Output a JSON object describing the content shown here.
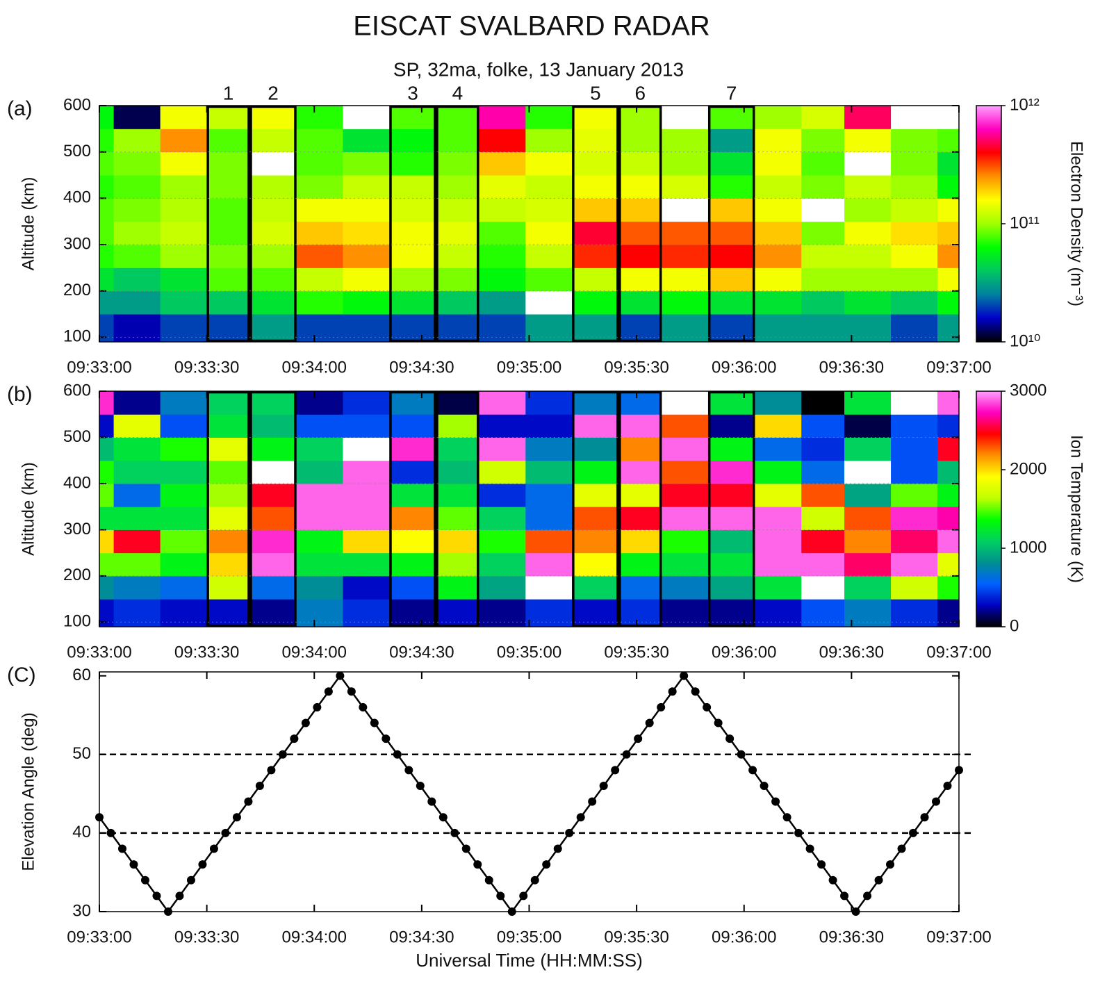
{
  "title": "EISCAT SVALBARD RADAR",
  "subtitle": "SP, 32ma, folke, 13 January 2013",
  "chart_data": [
    {
      "type": "heatmap",
      "panel_label": "(a)",
      "y_label": "Altitude (km)",
      "xlim": [
        0,
        240
      ],
      "xticks": [
        {
          "value": 0,
          "label": "09:33:00"
        },
        {
          "value": 30,
          "label": "09:33:30"
        },
        {
          "value": 60,
          "label": "09:34:00"
        },
        {
          "value": 90,
          "label": "09:34:30"
        },
        {
          "value": 120,
          "label": "09:35:00"
        },
        {
          "value": 150,
          "label": "09:35:30"
        },
        {
          "value": 180,
          "label": "09:36:00"
        },
        {
          "value": 210,
          "label": "09:36:30"
        },
        {
          "value": 240,
          "label": "09:37:00"
        }
      ],
      "ylim": [
        90,
        600
      ],
      "yticks": [
        100,
        200,
        300,
        400,
        500,
        600
      ],
      "grid": true,
      "x_edges": [
        0,
        4,
        17,
        30,
        42,
        55,
        68,
        81,
        94,
        106,
        119,
        132,
        145,
        157,
        170,
        183,
        196,
        208,
        221,
        234,
        240
      ],
      "y_edges": [
        90,
        150,
        200,
        250,
        300,
        350,
        400,
        450,
        500,
        550,
        600
      ],
      "column_labels": [
        null,
        null,
        null,
        "1",
        "2",
        null,
        null,
        "3",
        "4",
        null,
        null,
        "5",
        "6",
        null,
        "7",
        null,
        null,
        null,
        null,
        null
      ],
      "values": [
        [
          20000000000.0,
          30000000000.0,
          50000000000.0,
          70000000000.0,
          80000000000.0,
          80000000000.0,
          70000000000.0,
          80000000000.0,
          70000000000.0,
          60000000000.0
        ],
        [
          15000000000.0,
          30000000000.0,
          40000000000.0,
          80000000000.0,
          100000000000.0,
          90000000000.0,
          80000000000.0,
          90000000000.0,
          100000000000.0,
          12000000000.0
        ],
        [
          20000000000.0,
          40000000000.0,
          50000000000.0,
          100000000000.0,
          120000000000.0,
          110000000000.0,
          100000000000.0,
          150000000000.0,
          250000000000.0,
          150000000000.0
        ],
        [
          20000000000.0,
          40000000000.0,
          80000000000.0,
          90000000000.0,
          80000000000.0,
          80000000000.0,
          90000000000.0,
          90000000000.0,
          80000000000.0,
          120000000000.0
        ],
        [
          30000000000.0,
          50000000000.0,
          80000000000.0,
          100000000000.0,
          130000000000.0,
          120000000000.0,
          110000000000.0,
          null,
          120000000000.0,
          150000000000.0
        ],
        [
          20000000000.0,
          70000000000.0,
          120000000000.0,
          300000000000.0,
          200000000000.0,
          150000000000.0,
          90000000000.0,
          80000000000.0,
          80000000000.0,
          70000000000.0
        ],
        [
          20000000000.0,
          60000000000.0,
          150000000000.0,
          250000000000.0,
          180000000000.0,
          150000000000.0,
          120000000000.0,
          90000000000.0,
          50000000000.0,
          null
        ],
        [
          20000000000.0,
          50000000000.0,
          100000000000.0,
          150000000000.0,
          150000000000.0,
          130000000000.0,
          120000000000.0,
          70000000000.0,
          60000000000.0,
          80000000000.0
        ],
        [
          20000000000.0,
          40000000000.0,
          90000000000.0,
          120000000000.0,
          140000000000.0,
          120000000000.0,
          100000000000.0,
          90000000000.0,
          80000000000.0,
          80000000000.0
        ],
        [
          20000000000.0,
          30000000000.0,
          60000000000.0,
          70000000000.0,
          80000000000.0,
          120000000000.0,
          140000000000.0,
          200000000000.0,
          400000000000.0,
          600000000000.0
        ],
        [
          30000000000.0,
          null,
          80000000000.0,
          120000000000.0,
          150000000000.0,
          130000000000.0,
          120000000000.0,
          150000000000.0,
          100000000000.0,
          70000000000.0
        ],
        [
          30000000000.0,
          60000000000.0,
          120000000000.0,
          350000000000.0,
          450000000000.0,
          200000000000.0,
          150000000000.0,
          130000000000.0,
          140000000000.0,
          150000000000.0
        ],
        [
          20000000000.0,
          50000000000.0,
          150000000000.0,
          400000000000.0,
          300000000000.0,
          200000000000.0,
          150000000000.0,
          120000000000.0,
          100000000000.0,
          100000000000.0
        ],
        [
          30000000000.0,
          60000000000.0,
          150000000000.0,
          350000000000.0,
          300000000000.0,
          null,
          130000000000.0,
          100000000000.0,
          100000000000.0,
          null
        ],
        [
          20000000000.0,
          50000000000.0,
          200000000000.0,
          400000000000.0,
          300000000000.0,
          200000000000.0,
          70000000000.0,
          50000000000.0,
          30000000000.0,
          80000000000.0
        ],
        [
          30000000000.0,
          50000000000.0,
          150000000000.0,
          250000000000.0,
          200000000000.0,
          150000000000.0,
          120000000000.0,
          150000000000.0,
          150000000000.0,
          100000000000.0
        ],
        [
          30000000000.0,
          40000000000.0,
          100000000000.0,
          120000000000.0,
          90000000000.0,
          null,
          90000000000.0,
          80000000000.0,
          90000000000.0,
          130000000000.0
        ],
        [
          30000000000.0,
          50000000000.0,
          100000000000.0,
          120000000000.0,
          150000000000.0,
          100000000000.0,
          120000000000.0,
          null,
          150000000000.0,
          500000000000.0
        ],
        [
          20000000000.0,
          40000000000.0,
          100000000000.0,
          150000000000.0,
          180000000000.0,
          120000000000.0,
          100000000000.0,
          90000000000.0,
          90000000000.0,
          null
        ],
        [
          30000000000.0,
          60000000000.0,
          150000000000.0,
          250000000000.0,
          200000000000.0,
          150000000000.0,
          60000000000.0,
          50000000000.0,
          80000000000.0,
          null
        ]
      ],
      "missing_color": "#ffffff",
      "colorbar": {
        "label": "Electron Density (m⁻³)",
        "log": true,
        "lim": [
          10000000000.0,
          1000000000000.0
        ],
        "ticks": [
          {
            "value": 10000000000.0,
            "label": "10¹⁰"
          },
          {
            "value": 100000000000.0,
            "label": "10¹¹"
          },
          {
            "value": 1000000000000.0,
            "label": "10¹²"
          }
        ],
        "colors": [
          "#000000",
          "#0000c8",
          "#0080a0",
          "#00c860",
          "#00ff00",
          "#a0ff00",
          "#ffff00",
          "#ff9000",
          "#ff0000",
          "#ff00c0",
          "#ffa0ff"
        ]
      }
    },
    {
      "type": "heatmap",
      "panel_label": "(b)",
      "y_label": "Altitude (km)",
      "xlim": [
        0,
        240
      ],
      "xticks": [
        {
          "value": 0,
          "label": "09:33:00"
        },
        {
          "value": 30,
          "label": "09:33:30"
        },
        {
          "value": 60,
          "label": "09:34:00"
        },
        {
          "value": 90,
          "label": "09:34:30"
        },
        {
          "value": 120,
          "label": "09:35:00"
        },
        {
          "value": 150,
          "label": "09:35:30"
        },
        {
          "value": 180,
          "label": "09:36:00"
        },
        {
          "value": 210,
          "label": "09:36:30"
        },
        {
          "value": 240,
          "label": "09:37:00"
        }
      ],
      "ylim": [
        90,
        600
      ],
      "yticks": [
        100,
        200,
        300,
        400,
        500,
        600
      ],
      "grid": true,
      "x_edges": [
        0,
        4,
        17,
        30,
        42,
        55,
        68,
        81,
        94,
        106,
        119,
        132,
        145,
        157,
        170,
        183,
        196,
        208,
        221,
        234,
        240
      ],
      "y_edges": [
        90,
        150,
        200,
        250,
        300,
        350,
        400,
        450,
        500,
        550,
        600
      ],
      "values": [
        [
          300,
          800,
          1500,
          2000,
          1200,
          1500,
          1400,
          1000,
          300,
          2800
        ],
        [
          400,
          700,
          1500,
          2500,
          1200,
          600,
          1100,
          1200,
          1800,
          200
        ],
        [
          300,
          600,
          1300,
          1500,
          1200,
          1300,
          1100,
          1400,
          500,
          700
        ],
        [
          300,
          1700,
          2000,
          2200,
          1800,
          1600,
          1500,
          1800,
          1200,
          1100
        ],
        [
          200,
          600,
          2900,
          2800,
          2300,
          2500,
          null,
          1300,
          1000,
          1100
        ],
        [
          700,
          800,
          1200,
          1300,
          2900,
          2900,
          1000,
          1100,
          500,
          200
        ],
        [
          400,
          300,
          1200,
          2000,
          2900,
          2900,
          2900,
          null,
          500,
          400
        ],
        [
          200,
          500,
          1300,
          1900,
          2200,
          1200,
          400,
          2800,
          500,
          700
        ],
        [
          300,
          1300,
          1600,
          2000,
          1500,
          1200,
          1000,
          1100,
          1600,
          100
        ],
        [
          200,
          900,
          1100,
          1400,
          1100,
          400,
          1700,
          2900,
          300,
          2900
        ],
        [
          400,
          null,
          2900,
          2300,
          600,
          600,
          1000,
          700,
          300,
          400
        ],
        [
          300,
          1100,
          1900,
          2200,
          2300,
          1800,
          1300,
          800,
          2900,
          700
        ],
        [
          400,
          600,
          1300,
          2000,
          2500,
          1800,
          2900,
          2200,
          2900,
          600
        ],
        [
          200,
          700,
          1200,
          1400,
          2900,
          2500,
          2300,
          2900,
          2300,
          null
        ],
        [
          200,
          900,
          1200,
          1000,
          2900,
          2500,
          2800,
          1300,
          200,
          1200
        ],
        [
          300,
          1200,
          2900,
          2900,
          2900,
          1800,
          1300,
          600,
          2000,
          800
        ],
        [
          500,
          null,
          2900,
          2500,
          1700,
          2300,
          600,
          400,
          500,
          0
        ],
        [
          700,
          1100,
          2600,
          2200,
          2300,
          900,
          null,
          1100,
          100,
          1200
        ],
        [
          400,
          1700,
          2900,
          2600,
          2800,
          1500,
          500,
          500,
          500,
          null
        ],
        [
          200,
          1400,
          1800,
          2900,
          2700,
          1300,
          1000,
          2500,
          400,
          2900
        ]
      ],
      "missing_color": "#ffffff",
      "colorbar": {
        "label": "Ion Temperature (K)",
        "log": false,
        "lim": [
          0,
          3000
        ],
        "ticks": [
          0,
          1000,
          2000,
          3000
        ],
        "colors": [
          "#000000",
          "#0000c0",
          "#0060ff",
          "#009090",
          "#00d060",
          "#00ff00",
          "#c0ff00",
          "#ffff00",
          "#ff9000",
          "#ff0000",
          "#ff00c0",
          "#ffa0ff"
        ]
      }
    },
    {
      "type": "line",
      "panel_label": "(C)",
      "y_label": "Elevation Angle (deg)",
      "x_label": "Universal Time (HH:MM:SS)",
      "xlim": [
        0,
        240
      ],
      "xticks": [
        {
          "value": 0,
          "label": "09:33:00"
        },
        {
          "value": 30,
          "label": "09:33:30"
        },
        {
          "value": 60,
          "label": "09:34:00"
        },
        {
          "value": 90,
          "label": "09:34:30"
        },
        {
          "value": 120,
          "label": "09:35:00"
        },
        {
          "value": 150,
          "label": "09:35:30"
        },
        {
          "value": 180,
          "label": "09:36:00"
        },
        {
          "value": 210,
          "label": "09:36:30"
        },
        {
          "value": 240,
          "label": "09:37:00"
        }
      ],
      "ylim": [
        30,
        60.5
      ],
      "yticks": [
        30,
        40,
        50,
        60
      ],
      "reference_lines": [
        40,
        50
      ],
      "color": "#000000",
      "x": [
        0,
        3.2,
        6.4,
        9.6,
        12.8,
        16,
        19.2,
        22.4,
        25.6,
        28.8,
        32,
        35.2,
        38.4,
        41.6,
        44.8,
        48,
        51.2,
        54.4,
        57.6,
        60.8,
        64,
        67.2,
        70.4,
        73.6,
        76.8,
        80,
        83.2,
        86.4,
        89.6,
        92.8,
        96,
        99.2,
        102.4,
        105.6,
        108.8,
        112,
        115.2,
        118.4,
        121.6,
        124.8,
        128,
        131.2,
        134.4,
        137.6,
        140.8,
        144,
        147.2,
        150.4,
        153.6,
        156.8,
        160,
        163.2,
        166.4,
        169.6,
        172.8,
        176,
        179.2,
        182.4,
        185.6,
        188.8,
        192,
        195.2,
        198.4,
        201.6,
        204.8,
        208,
        211.2,
        214.4,
        217.6,
        220.8,
        224,
        227.2,
        230.4,
        233.6,
        236.8,
        240
      ],
      "values": [
        42,
        40,
        38,
        36,
        34,
        32,
        30,
        32,
        34,
        36,
        38,
        40,
        42,
        44,
        46,
        48,
        50,
        52,
        54,
        56,
        58,
        60,
        58,
        56,
        54,
        52,
        50,
        48,
        46,
        44,
        42,
        40,
        38,
        36,
        34,
        32,
        30,
        32,
        34,
        36,
        38,
        40,
        42,
        44,
        46,
        48,
        50,
        52,
        54,
        56,
        58,
        60,
        58,
        56,
        54,
        52,
        50,
        48,
        46,
        44,
        42,
        40,
        38,
        36,
        34,
        32,
        30,
        32,
        34,
        36,
        38,
        40,
        42,
        44,
        46,
        48
      ]
    }
  ]
}
